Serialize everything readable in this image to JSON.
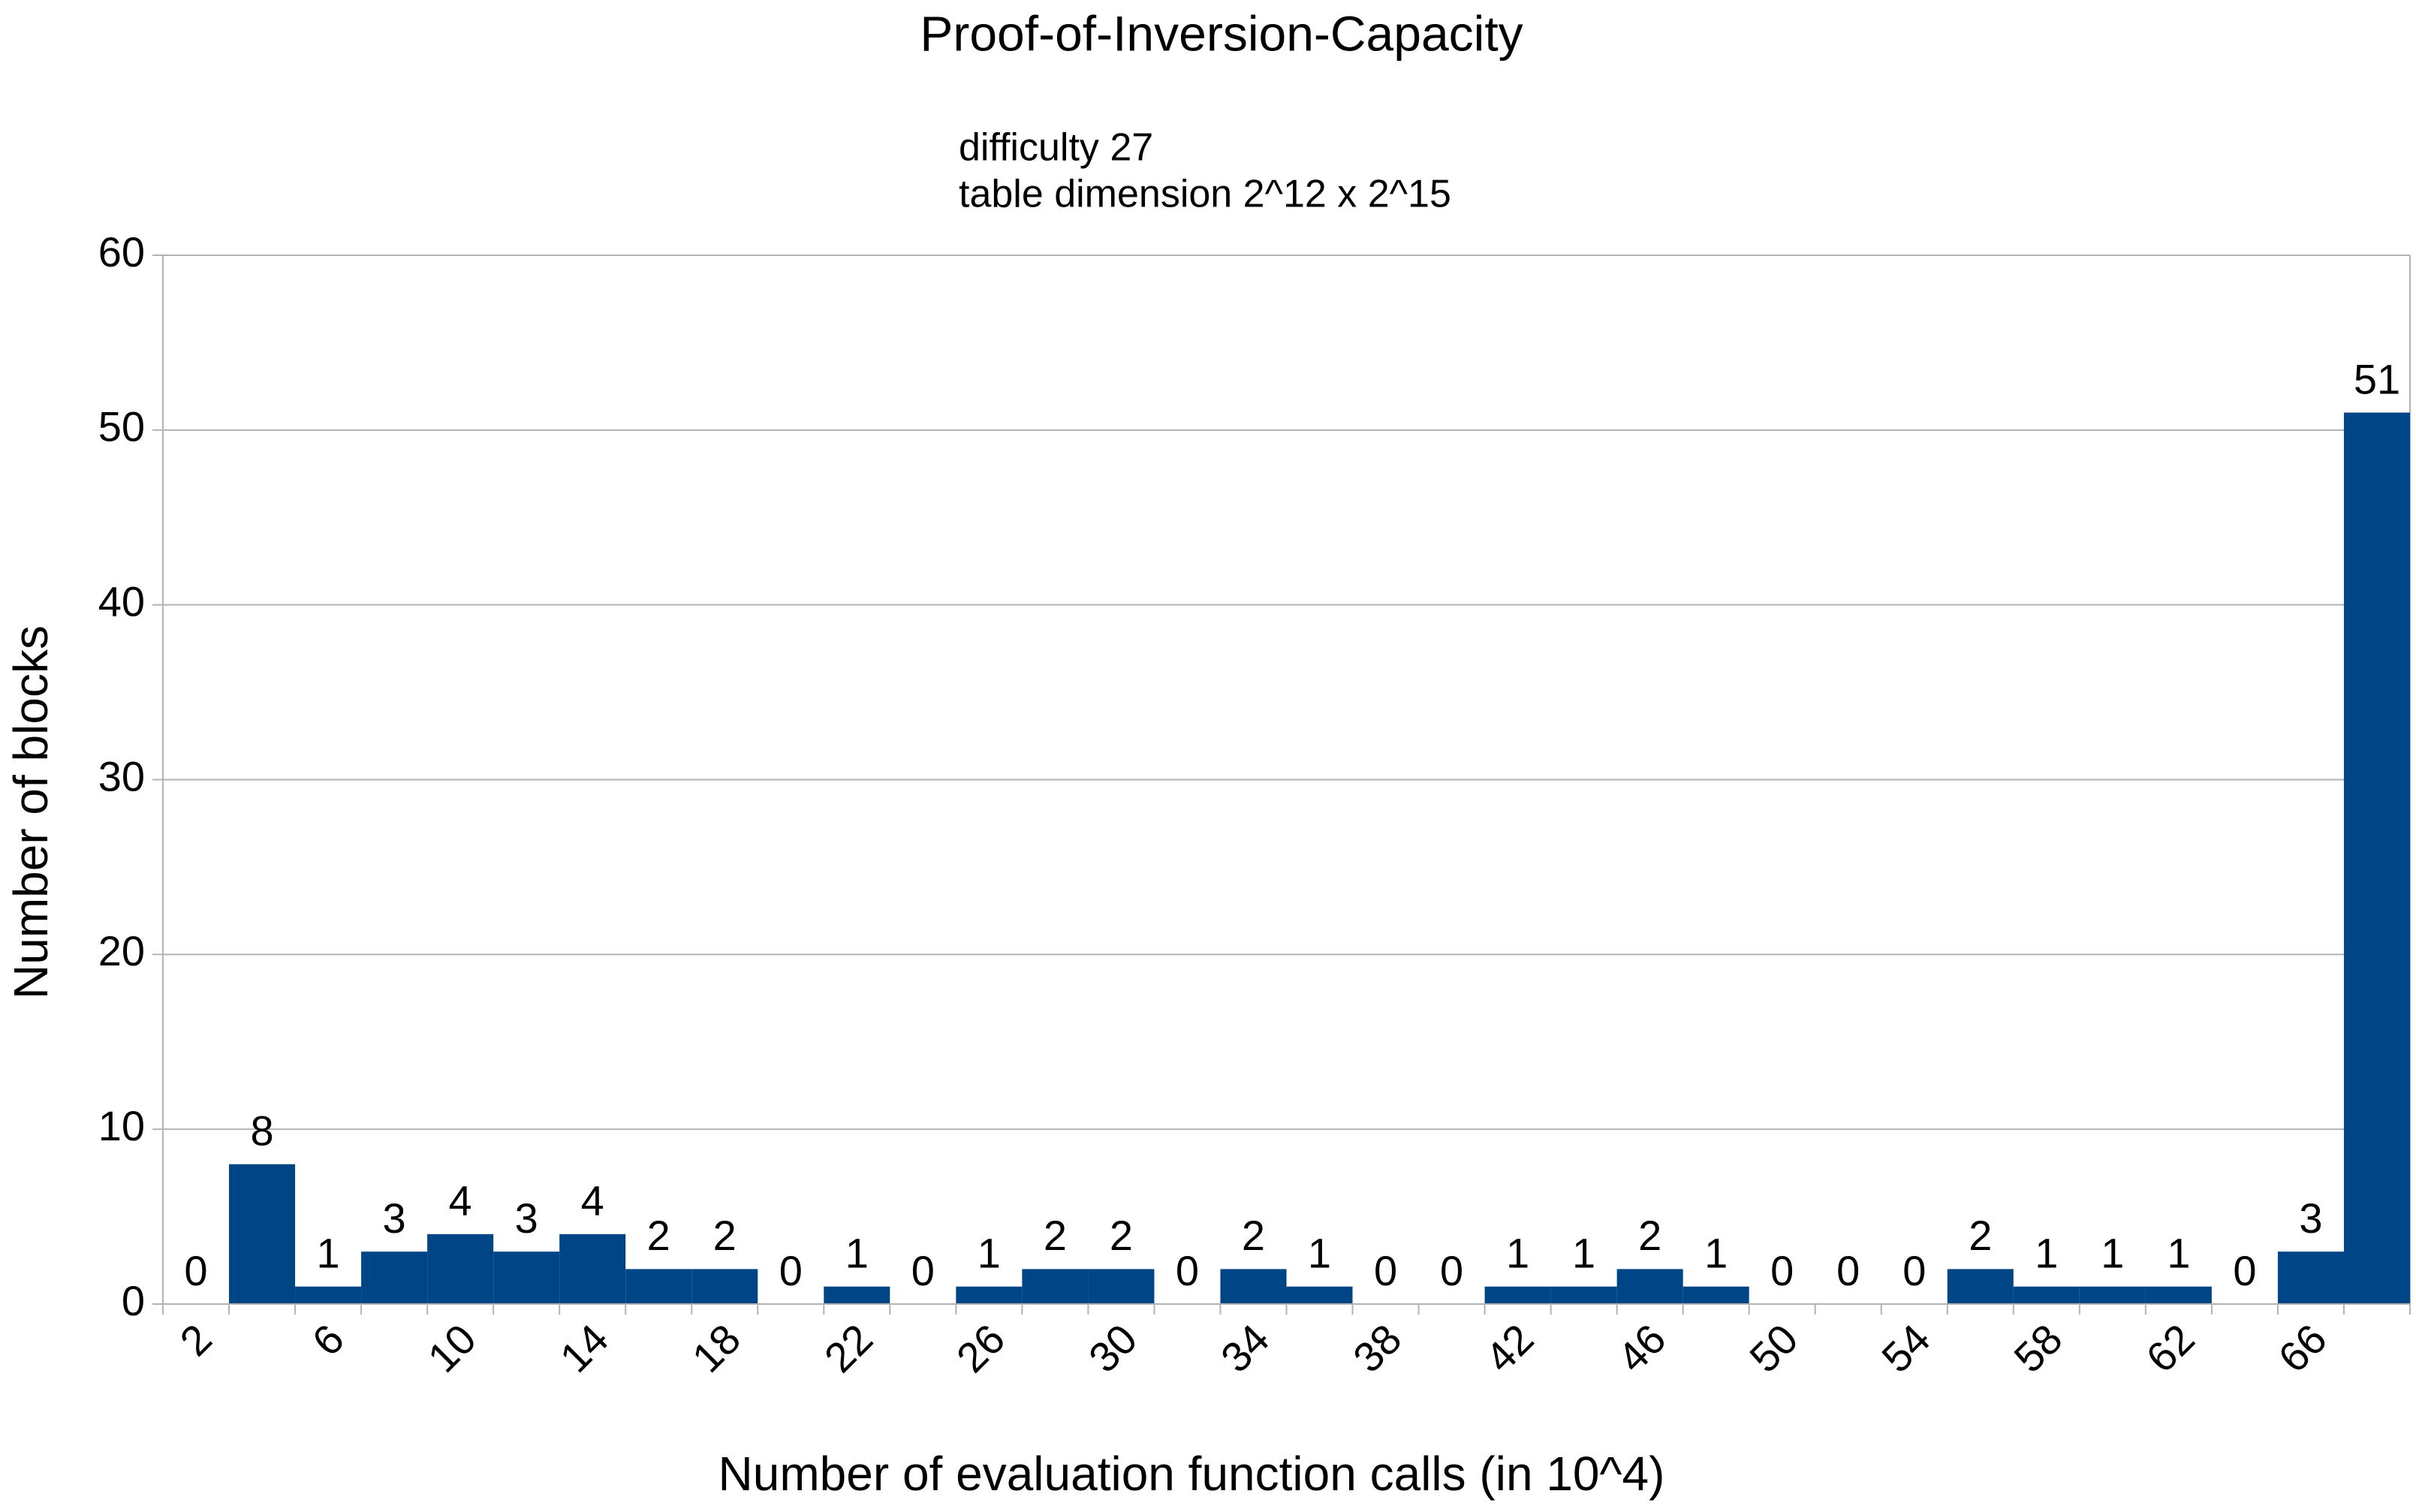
{
  "chart_data": {
    "type": "bar",
    "title": "Proof-of-Inversion-Capacity",
    "subtitle": [
      "difficulty 27",
      "table dimension 2^12 x 2^15"
    ],
    "x_label": "Number of evaluation function calls (in 10^4)",
    "y_label": "Number of blocks",
    "categories": [
      "2",
      null,
      "6",
      null,
      "10",
      null,
      "14",
      null,
      "18",
      null,
      "22",
      null,
      "26",
      null,
      "30",
      null,
      "34",
      null,
      "38",
      null,
      "42",
      null,
      "46",
      null,
      "50",
      null,
      "54",
      null,
      "58",
      null,
      "62",
      null,
      "66",
      null
    ],
    "values": [
      0,
      8,
      1,
      3,
      4,
      3,
      4,
      2,
      2,
      0,
      1,
      0,
      1,
      2,
      2,
      0,
      2,
      1,
      0,
      0,
      1,
      1,
      2,
      1,
      0,
      0,
      0,
      2,
      1,
      1,
      1,
      0,
      3,
      51
    ],
    "color": "#004586",
    "ylim": [
      0,
      60
    ],
    "yticks": [
      0,
      10,
      20,
      30,
      40,
      50,
      60
    ],
    "grid": true
  }
}
